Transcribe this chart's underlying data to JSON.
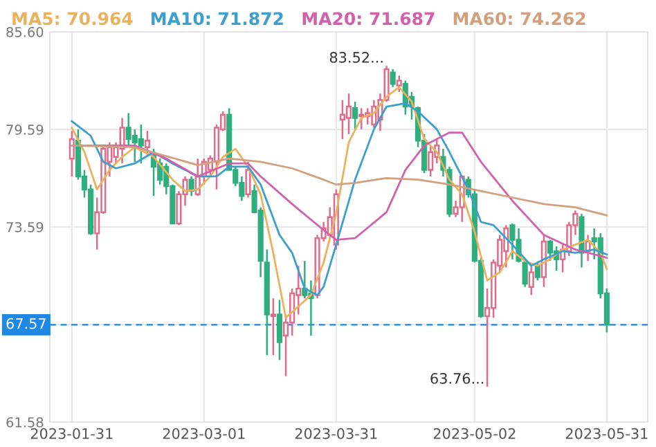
{
  "chart_data": {
    "type": "candlestick",
    "categories": [
      "2023-01-31",
      null,
      null,
      null,
      null,
      null,
      null,
      null,
      null,
      null,
      null,
      null,
      null,
      null,
      null,
      null,
      null,
      null,
      null,
      null,
      null,
      "2023-03-01",
      null,
      null,
      null,
      null,
      null,
      null,
      null,
      null,
      null,
      null,
      null,
      null,
      null,
      null,
      null,
      null,
      null,
      null,
      null,
      null,
      "2023-03-31",
      null,
      null,
      null,
      null,
      null,
      null,
      null,
      null,
      null,
      null,
      null,
      null,
      null,
      null,
      null,
      null,
      null,
      null,
      null,
      null,
      null,
      "2023-05-02",
      null,
      null,
      null,
      null,
      null,
      null,
      null,
      null,
      null,
      null,
      null,
      null,
      null,
      null,
      null,
      null,
      null,
      null,
      null,
      null,
      "2023-05-31"
    ],
    "ohlc": [
      [
        77.8,
        79.5,
        76.7,
        79.0
      ],
      [
        78.9,
        79.6,
        76.5,
        76.7
      ],
      [
        76.7,
        77.1,
        75.4,
        75.9
      ],
      [
        75.9,
        76.2,
        73.1,
        73.2
      ],
      [
        73.2,
        75.4,
        72.2,
        74.5
      ],
      [
        74.5,
        78.6,
        74.4,
        78.4
      ],
      [
        77.6,
        78.8,
        76.7,
        78.5
      ],
      [
        77.9,
        78.8,
        77.5,
        78.5
      ],
      [
        78.4,
        80.3,
        77.5,
        79.7
      ],
      [
        79.7,
        80.6,
        78.5,
        79.0
      ],
      [
        79.2,
        79.6,
        77.6,
        78.8
      ],
      [
        79.0,
        79.9,
        77.5,
        78.6
      ],
      [
        78.5,
        79.5,
        77.9,
        78.9
      ],
      [
        78.0,
        78.4,
        75.5,
        77.3
      ],
      [
        77.5,
        77.8,
        76.2,
        76.5
      ],
      [
        77.3,
        77.5,
        75.6,
        76.1
      ],
      [
        76.1,
        76.2,
        73.8,
        73.8
      ],
      [
        73.8,
        75.8,
        73.7,
        75.6
      ],
      [
        75.6,
        76.7,
        74.9,
        76.5
      ],
      [
        76.5,
        76.7,
        75.5,
        75.8
      ],
      [
        75.6,
        77.8,
        75.5,
        76.7
      ],
      [
        76.7,
        77.8,
        76.2,
        77.6
      ],
      [
        77.1,
        78.0,
        76.7,
        77.8
      ],
      [
        77.6,
        79.9,
        75.9,
        79.7
      ],
      [
        79.6,
        80.7,
        79.5,
        80.5
      ],
      [
        80.5,
        80.9,
        77.1,
        77.1
      ],
      [
        77.1,
        77.3,
        76.1,
        76.3
      ],
      [
        76.3,
        76.7,
        75.2,
        75.5
      ],
      [
        75.6,
        77.6,
        75.4,
        77.1
      ],
      [
        75.8,
        76.2,
        74.5,
        74.5
      ],
      [
        74.6,
        74.8,
        70.5,
        71.5
      ],
      [
        71.4,
        72.2,
        65.7,
        68.2
      ],
      [
        68.1,
        69.2,
        65.7,
        68.2
      ],
      [
        68.2,
        69.1,
        65.4,
        66.5
      ],
      [
        66.9,
        68.2,
        64.4,
        67.7
      ],
      [
        67.7,
        69.8,
        66.9,
        69.5
      ],
      [
        69.4,
        71.2,
        68.2,
        69.8
      ],
      [
        69.8,
        71.5,
        69.2,
        69.4
      ],
      [
        69.5,
        70.3,
        66.9,
        69.2
      ],
      [
        69.4,
        73.1,
        69.2,
        72.9
      ],
      [
        72.9,
        73.9,
        72.7,
        73.5
      ],
      [
        73.1,
        74.8,
        72.9,
        74.2
      ],
      [
        72.5,
        75.9,
        72.2,
        75.6
      ],
      [
        80.2,
        81.4,
        79.0,
        80.5
      ],
      [
        80.3,
        81.8,
        79.3,
        81.0
      ],
      [
        80.9,
        81.3,
        79.6,
        80.3
      ],
      [
        80.4,
        80.9,
        79.6,
        80.5
      ],
      [
        80.4,
        80.9,
        79.9,
        80.6
      ],
      [
        79.9,
        81.4,
        79.7,
        81.0
      ],
      [
        80.2,
        81.8,
        79.5,
        81.4
      ],
      [
        81.4,
        83.52,
        81.3,
        83.3
      ],
      [
        83.1,
        83.3,
        82.2,
        82.4
      ],
      [
        82.3,
        82.9,
        81.9,
        82.6
      ],
      [
        82.4,
        82.6,
        80.5,
        81.0
      ],
      [
        81.6,
        81.9,
        80.2,
        81.0
      ],
      [
        80.9,
        81.0,
        78.5,
        78.9
      ],
      [
        78.9,
        79.3,
        76.9,
        77.1
      ],
      [
        77.1,
        78.6,
        76.7,
        78.2
      ],
      [
        77.9,
        79.0,
        77.5,
        78.6
      ],
      [
        77.9,
        78.4,
        76.7,
        77.1
      ],
      [
        77.1,
        77.3,
        74.2,
        74.4
      ],
      [
        74.4,
        75.2,
        74.2,
        74.8
      ],
      [
        74.8,
        76.7,
        73.9,
        76.7
      ],
      [
        76.5,
        76.7,
        75.4,
        75.6
      ],
      [
        75.6,
        75.9,
        71.4,
        71.5
      ],
      [
        71.5,
        71.7,
        68.0,
        68.1
      ],
      [
        68.1,
        69.8,
        63.76,
        68.6
      ],
      [
        68.6,
        71.6,
        68.0,
        71.4
      ],
      [
        71.2,
        73.1,
        70.8,
        72.8
      ],
      [
        72.1,
        73.7,
        71.1,
        73.5
      ],
      [
        73.7,
        73.8,
        71.6,
        72.8
      ],
      [
        72.8,
        73.5,
        71.4,
        71.5
      ],
      [
        71.4,
        71.5,
        69.9,
        70.1
      ],
      [
        69.9,
        71.2,
        69.4,
        70.8
      ],
      [
        71.2,
        71.4,
        70.3,
        70.5
      ],
      [
        70.5,
        73.1,
        69.9,
        72.7
      ],
      [
        72.7,
        72.8,
        71.5,
        72.0
      ],
      [
        72.1,
        72.4,
        70.9,
        71.6
      ],
      [
        71.6,
        72.5,
        70.8,
        72.2
      ],
      [
        72.1,
        73.9,
        71.8,
        73.7
      ],
      [
        73.7,
        74.6,
        73.1,
        74.4
      ],
      [
        74.2,
        74.4,
        71.1,
        72.0
      ],
      [
        72.1,
        73.1,
        71.5,
        72.7
      ],
      [
        72.9,
        73.5,
        71.6,
        72.7
      ],
      [
        72.9,
        73.2,
        69.2,
        69.5
      ],
      [
        69.5,
        69.8,
        67.1,
        67.57
      ]
    ],
    "colors": [
      "#e06c8c",
      "#2fae7f",
      "#2fae7f",
      "#2fae7f",
      "#e06c8c",
      "#e06c8c",
      "#e06c8c",
      "#e06c8c",
      "#e06c8c",
      "#2fae7f",
      "#2fae7f",
      "#2fae7f",
      "#e06c8c",
      "#2fae7f",
      "#2fae7f",
      "#2fae7f",
      "#2fae7f",
      "#e06c8c",
      "#e06c8c",
      "#2fae7f",
      "#e06c8c",
      "#e06c8c",
      "#e06c8c",
      "#e06c8c",
      "#e06c8c",
      "#2fae7f",
      "#2fae7f",
      "#2fae7f",
      "#e06c8c",
      "#2fae7f",
      "#2fae7f",
      "#2fae7f",
      "#e06c8c",
      "#2fae7f",
      "#e06c8c",
      "#e06c8c",
      "#e06c8c",
      "#2fae7f",
      "#2fae7f",
      "#e06c8c",
      "#e06c8c",
      "#e06c8c",
      "#e06c8c",
      "#e06c8c",
      "#e06c8c",
      "#2fae7f",
      "#e06c8c",
      "#e06c8c",
      "#e06c8c",
      "#e06c8c",
      "#e06c8c",
      "#2fae7f",
      "#e06c8c",
      "#2fae7f",
      "#2fae7f",
      "#2fae7f",
      "#2fae7f",
      "#e06c8c",
      "#e06c8c",
      "#2fae7f",
      "#2fae7f",
      "#e06c8c",
      "#e06c8c",
      "#2fae7f",
      "#2fae7f",
      "#2fae7f",
      "#e06c8c",
      "#e06c8c",
      "#e06c8c",
      "#e06c8c",
      "#2fae7f",
      "#2fae7f",
      "#2fae7f",
      "#e06c8c",
      "#2fae7f",
      "#e06c8c",
      "#2fae7f",
      "#2fae7f",
      "#e06c8c",
      "#e06c8c",
      "#e06c8c",
      "#2fae7f",
      "#e06c8c",
      "#2fae7f",
      "#2fae7f",
      "#2fae7f"
    ],
    "series": [
      {
        "type": "line",
        "name": "MA5: 70.964",
        "color": "#e8b25e",
        "values": [
          79.7,
          null,
          78.2,
          null,
          75.9,
          null,
          77.1,
          null,
          77.9,
          null,
          78.5,
          null,
          null,
          77.9,
          null,
          null,
          76.5,
          null,
          75.8,
          null,
          75.9,
          null,
          76.7,
          null,
          77.9,
          null,
          78.4,
          null,
          77.3,
          null,
          75.6,
          null,
          72.0,
          null,
          68.0,
          null,
          68.7,
          null,
          69.4,
          null,
          71.4,
          null,
          74.4,
          null,
          78.8,
          null,
          80.3,
          null,
          80.6,
          null,
          81.6,
          null,
          82.2,
          null,
          81.3,
          null,
          79.0,
          null,
          78.2,
          null,
          76.5,
          null,
          75.6,
          null,
          73.3,
          null,
          70.3,
          null,
          70.8,
          null,
          72.1,
          null,
          71.5,
          null,
          71.2,
          null,
          71.6,
          null,
          72.2,
          null,
          72.5,
          null,
          72.8,
          null,
          72.0,
          71.0
        ]
      },
      {
        "type": "line",
        "name": "MA10: 71.872",
        "color": "#3d9fce",
        "values": [
          80.1,
          null,
          null,
          79.2,
          null,
          77.6,
          null,
          77.2,
          null,
          null,
          77.5,
          null,
          null,
          78.2,
          null,
          null,
          77.5,
          null,
          null,
          null,
          76.7,
          null,
          null,
          76.7,
          null,
          77.3,
          null,
          null,
          77.3,
          null,
          76.2,
          null,
          null,
          73.1,
          null,
          72.0,
          null,
          69.8,
          null,
          69.4,
          69.9,
          null,
          72.5,
          null,
          null,
          76.5,
          null,
          null,
          79.6,
          null,
          81.0,
          null,
          null,
          81.2,
          null,
          80.7,
          null,
          null,
          79.6,
          null,
          78.2,
          null,
          null,
          75.9,
          null,
          73.9,
          null,
          73.7,
          null,
          null,
          72.5,
          null,
          null,
          71.2,
          null,
          71.6,
          null,
          null,
          72.1,
          null,
          72.0,
          null,
          null,
          72.2,
          null,
          71.9
        ]
      },
      {
        "type": "line",
        "name": "MA20: 71.687",
        "color": "#d160ad",
        "values": [
          78.6,
          null,
          null,
          null,
          null,
          78.6,
          null,
          null,
          null,
          null,
          78.6,
          null,
          null,
          null,
          null,
          77.8,
          null,
          null,
          null,
          null,
          76.7,
          null,
          null,
          null,
          null,
          77.5,
          null,
          null,
          77.5,
          null,
          76.7,
          null,
          null,
          null,
          null,
          75.0,
          null,
          null,
          null,
          null,
          73.4,
          null,
          72.8,
          null,
          null,
          72.9,
          null,
          null,
          null,
          null,
          74.5,
          null,
          null,
          77.1,
          null,
          null,
          78.6,
          null,
          null,
          null,
          79.4,
          null,
          79.4,
          null,
          null,
          77.6,
          null,
          null,
          null,
          null,
          75.2,
          null,
          null,
          null,
          null,
          73.1,
          null,
          null,
          null,
          null,
          72.2,
          null,
          null,
          null,
          null,
          71.7
        ]
      },
      {
        "type": "line",
        "name": "MA60: 74.262",
        "color": "#d3a07e",
        "values": [
          78.6,
          null,
          null,
          null,
          null,
          null,
          null,
          null,
          null,
          null,
          78.5,
          null,
          null,
          null,
          null,
          null,
          null,
          null,
          null,
          null,
          77.4,
          null,
          null,
          null,
          null,
          77.8,
          null,
          null,
          null,
          null,
          77.6,
          null,
          null,
          null,
          null,
          77.2,
          null,
          null,
          null,
          null,
          76.5,
          null,
          76.2,
          null,
          null,
          76.3,
          null,
          null,
          null,
          null,
          76.6,
          null,
          null,
          null,
          null,
          76.5,
          null,
          null,
          null,
          null,
          76.2,
          null,
          null,
          null,
          null,
          75.8,
          null,
          null,
          null,
          null,
          75.4,
          null,
          null,
          null,
          null,
          75.0,
          null,
          null,
          null,
          null,
          74.8,
          null,
          null,
          null,
          null,
          74.3
        ]
      }
    ],
    "ylim": [
      61.58,
      85.6
    ],
    "yticks": [
      {
        "value": 85.6,
        "label": "85.60"
      },
      79.59,
      73.59,
      {
        "value": 67.58,
        "label": null
      },
      61.58
    ],
    "grid": true,
    "legend": "top",
    "ref_lines": [
      {
        "axis": "y",
        "value": 67.57,
        "label": "67.57",
        "color": "#1e88e5",
        "line_style": "dashed"
      }
    ],
    "annotations": [
      "83.52...",
      "63.76..."
    ]
  }
}
